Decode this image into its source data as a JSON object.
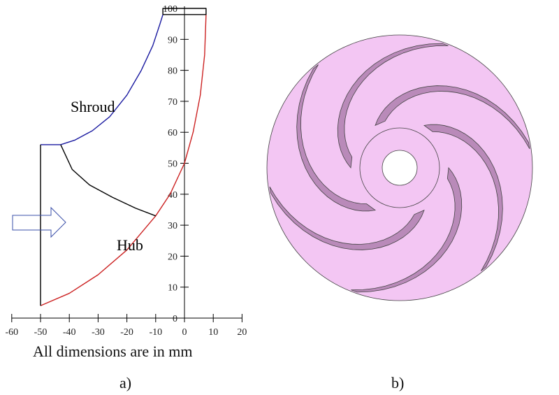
{
  "panel_a": {
    "caption": "a)",
    "note": "All dimensions are in mm",
    "shroud_label": "Shroud",
    "hub_label": "Hub",
    "colors": {
      "shroud": "#1a1aa0",
      "hub": "#cc2222",
      "arrow": "#3a4fa8"
    },
    "chart_data": {
      "type": "line",
      "xlim": [
        -60,
        20
      ],
      "ylim": [
        0,
        100
      ],
      "x_ticks": [
        -60,
        -50,
        -40,
        -30,
        -20,
        -10,
        0,
        10,
        20
      ],
      "y_ticks": [
        0,
        10,
        20,
        30,
        40,
        50,
        60,
        70,
        80,
        90,
        100
      ],
      "series": [
        {
          "name": "Shroud",
          "points": [
            [
              -50,
              56
            ],
            [
              -43,
              56
            ],
            [
              -38,
              57.5
            ],
            [
              -32,
              60.5
            ],
            [
              -26,
              65
            ],
            [
              -20,
              72
            ],
            [
              -15,
              80
            ],
            [
              -11,
              88
            ],
            [
              -8.5,
              95
            ],
            [
              -7.5,
              98
            ]
          ]
        },
        {
          "name": "Hub",
          "points": [
            [
              -50,
              4
            ],
            [
              -40,
              8
            ],
            [
              -30,
              14
            ],
            [
              -20,
              22
            ],
            [
              -10,
              33
            ],
            [
              -5,
              40
            ],
            [
              0,
              50
            ],
            [
              3,
              60
            ],
            [
              5.5,
              72
            ],
            [
              7,
              85
            ],
            [
              7.5,
              98
            ]
          ]
        },
        {
          "points": [
            [
              -43,
              56
            ],
            [
              -39,
              48
            ],
            [
              -33,
              43
            ],
            [
              -25,
              39
            ],
            [
              -17,
              35.5
            ],
            [
              -10,
              33
            ]
          ]
        },
        {
          "points": [
            [
              -50,
              4
            ],
            [
              -50,
              56
            ]
          ]
        },
        {
          "points": [
            [
              -7.5,
              98
            ],
            [
              7.5,
              98
            ],
            [
              7.5,
              100
            ],
            [
              -7.5,
              100
            ],
            [
              -7.5,
              98
            ]
          ]
        }
      ]
    }
  },
  "panel_b": {
    "caption": "b)",
    "colors": {
      "disc": "#f3c6f3",
      "shade": "#b98ab9",
      "edge": "#444"
    },
    "blade_count": 6
  }
}
